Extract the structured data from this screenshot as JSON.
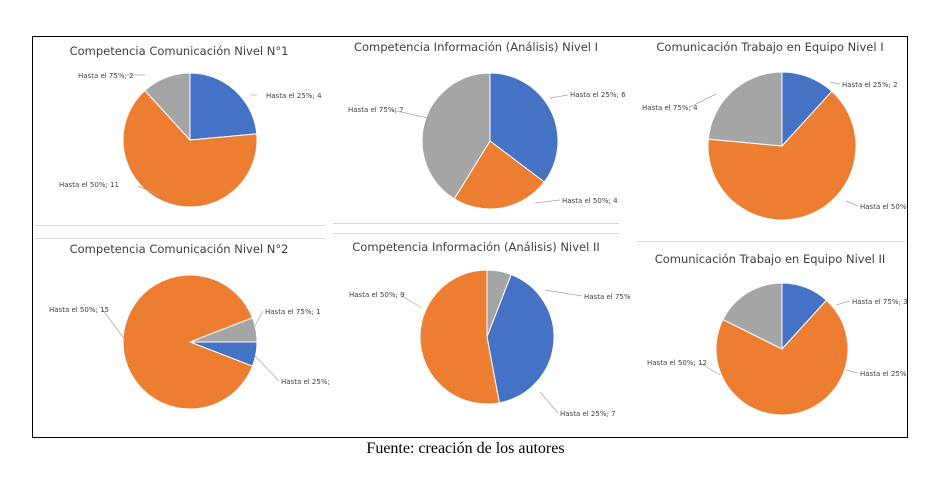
{
  "caption": "Fuente: creación de los autores",
  "colors": {
    "Hasta el 25%": "#4472c4",
    "Hasta el 50%": "#ed7d31",
    "Hasta el 75%": "#a5a5a5"
  },
  "chart_data": [
    {
      "type": "pie",
      "title": "Competencia Comunicación Nivel N°1",
      "slices": [
        {
          "name": "Hasta el 25%",
          "value": 4,
          "label": "Hasta el 25%; 4"
        },
        {
          "name": "Hasta el 50%",
          "value": 11,
          "label": "Hasta el 50%; 11"
        },
        {
          "name": "Hasta el 75%",
          "value": 2,
          "label": "Hasta el 75%; 2"
        }
      ]
    },
    {
      "type": "pie",
      "title": "Competencia Información (Análisis) Nivel I",
      "slices": [
        {
          "name": "Hasta el 25%",
          "value": 6,
          "label": "Hasta el 25%; 6"
        },
        {
          "name": "Hasta el 50%",
          "value": 4,
          "label": "Hasta el 50%; 4"
        },
        {
          "name": "Hasta el 75%",
          "value": 7,
          "label": "Hasta el 75%; 7"
        }
      ]
    },
    {
      "type": "pie",
      "title": "Comunicación Trabajo en Equipo Nivel I",
      "slices": [
        {
          "name": "Hasta el 25%",
          "value": 2,
          "label": "Hasta el 25%; 2"
        },
        {
          "name": "Hasta el 50%",
          "value": 11,
          "label": "Hasta el 50%;"
        },
        {
          "name": "Hasta el 75%",
          "value": 4,
          "label": "Hasta el 75%; 4"
        }
      ]
    },
    {
      "type": "pie",
      "title": "Competencia Comunicación Nivel N°2",
      "slices": [
        {
          "name": "Hasta el 25%",
          "value": 1,
          "label": "Hasta el 25%;"
        },
        {
          "name": "Hasta el 50%",
          "value": 15,
          "label": "Hasta el 50%; 15"
        },
        {
          "name": "Hasta el 75%",
          "value": 1,
          "label": "Hasta el 75%; 1"
        }
      ]
    },
    {
      "type": "pie",
      "title": "Competencia Información (Análisis) Nivel II",
      "slices": [
        {
          "name": "Hasta el 25%",
          "value": 7,
          "label": "Hasta el 25%; 7"
        },
        {
          "name": "Hasta el 50%",
          "value": 9,
          "label": "Hasta el 50%; 9"
        },
        {
          "name": "Hasta el 75%",
          "value": 1,
          "label": "Hasta el 75%"
        }
      ]
    },
    {
      "type": "pie",
      "title": "Comunicación Trabajo en Equipo Nivel II",
      "slices": [
        {
          "name": "Hasta el 25%",
          "value": 2,
          "label": "Hasta el 25%;"
        },
        {
          "name": "Hasta el 50%",
          "value": 12,
          "label": "Hasta el 50%; 12"
        },
        {
          "name": "Hasta el 75%",
          "value": 3,
          "label": "Hasta el 75%; 3"
        }
      ]
    }
  ]
}
